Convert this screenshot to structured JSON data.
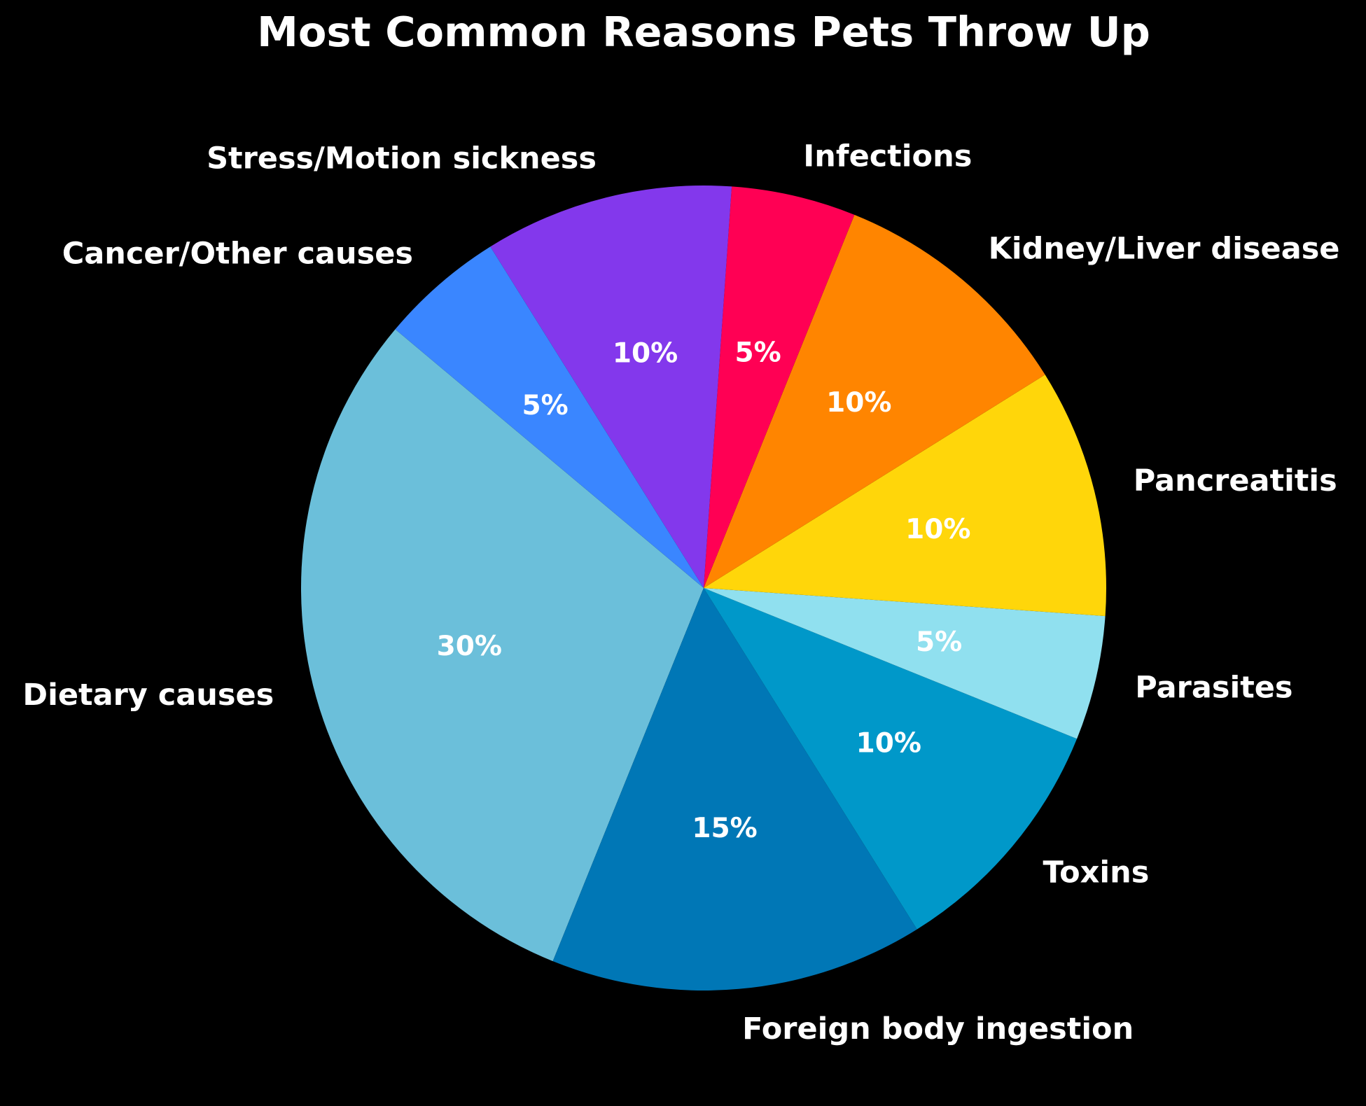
{
  "chart_data": {
    "type": "pie",
    "title": "Most Common Reasons Pets Throw Up",
    "categories": [
      "Dietary causes",
      "Foreign body ingestion",
      "Toxins",
      "Parasites",
      "Pancreatitis",
      "Kidney/Liver disease",
      "Infections",
      "Stress/Motion sickness",
      "Cancer/Other causes"
    ],
    "values": [
      30,
      15,
      10,
      5,
      10,
      10,
      5,
      10,
      5
    ],
    "value_labels": [
      "30%",
      "15%",
      "10%",
      "5%",
      "10%",
      "10%",
      "5%",
      "10%",
      "5%"
    ],
    "colors": [
      "#6bbfda",
      "#0077b6",
      "#0098c9",
      "#90e0ef",
      "#ffd60a",
      "#ff8500",
      "#ff0054",
      "#8338ec",
      "#3a86ff"
    ],
    "start_angle_deg": 140,
    "direction": "counterclockwise",
    "legend": "none",
    "background": "#000000"
  }
}
